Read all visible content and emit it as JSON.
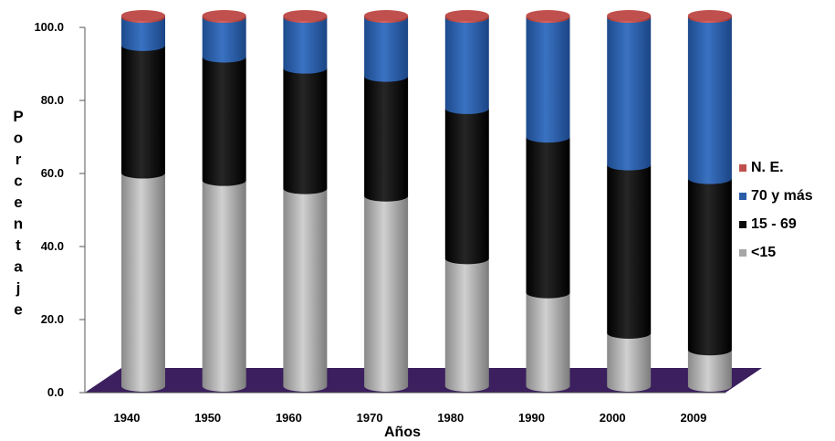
{
  "chart_data": {
    "type": "bar",
    "stacked": true,
    "style": "3d-cylinder",
    "xlabel": "Años",
    "ylabel": "Porcentaje",
    "ylim": [
      0,
      100
    ],
    "yticks": [
      "0.0",
      "20.0",
      "40.0",
      "60.0",
      "80.0",
      "100.0"
    ],
    "categories": [
      "1940",
      "1950",
      "1960",
      "1970",
      "1980",
      "1990",
      "2000",
      "2009"
    ],
    "series": [
      {
        "name": "<15",
        "color": "#a6a6a6",
        "values": [
          57.5,
          55.5,
          53.3,
          51.3,
          34.4,
          25.2,
          14.3,
          9.8
        ]
      },
      {
        "name": "15 - 69",
        "color": "#0b0b0b",
        "values": [
          34.4,
          33.3,
          32.5,
          32.3,
          40.5,
          42.0,
          45.4,
          46.2
        ]
      },
      {
        "name": "70 y más",
        "color": "#2a5da8",
        "values": [
          7.6,
          10.7,
          13.7,
          15.9,
          24.6,
          32.3,
          39.8,
          43.5
        ]
      },
      {
        "name": "N. E.",
        "color": "#c0504d",
        "values": [
          0.5,
          0.5,
          0.5,
          0.5,
          0.5,
          0.5,
          0.5,
          0.5
        ]
      }
    ],
    "legend_order": [
      "N. E.",
      "70 y más",
      "15 - 69",
      "<15"
    ],
    "legend_position": "right",
    "floor_color": "#3b1f5e"
  }
}
